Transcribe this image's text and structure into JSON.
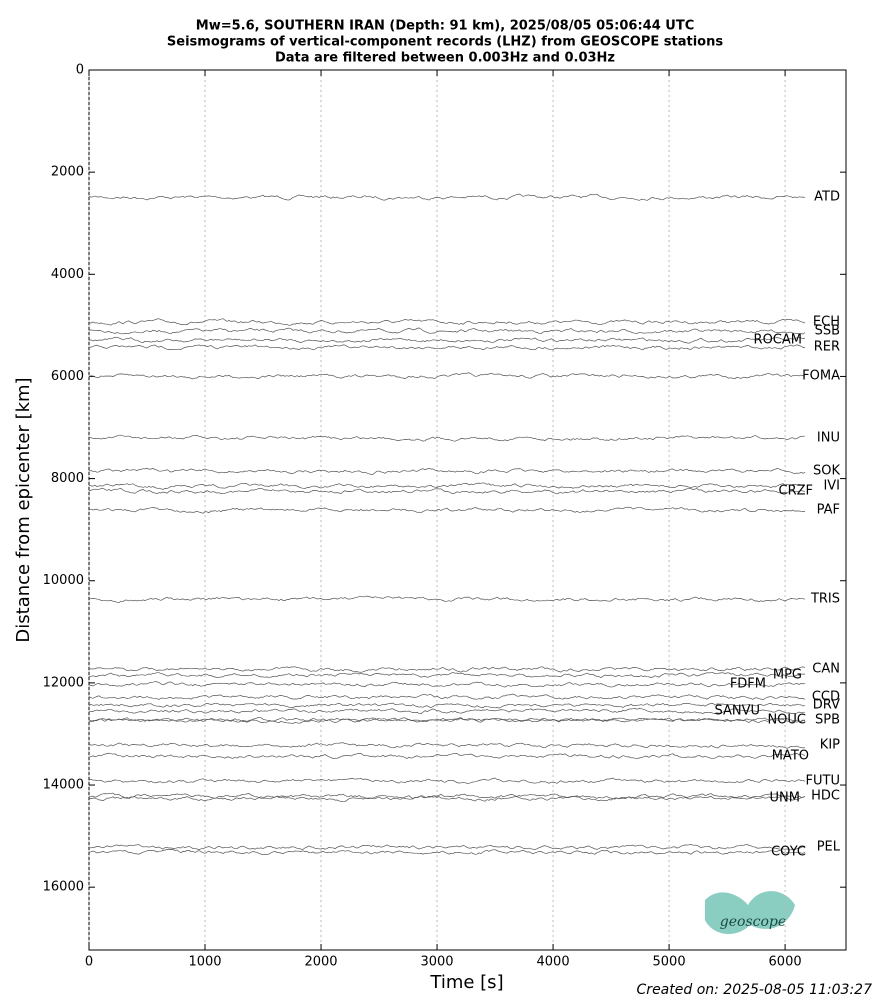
{
  "chart_data": {
    "type": "seismogram",
    "title": "Mw=5.6, SOUTHERN IRAN (Depth: 91 km), 2025/08/05 05:06:44 UTC",
    "subtitle": "Seismograms of vertical-component records (LHZ) from GEOSCOPE stations",
    "subtitle2": "Data are filtered between 0.003Hz and 0.03Hz",
    "x_label": "Time [s]",
    "y_label": "Distance from epicenter [km]",
    "footer": "Created on: 2025-08-05 11:03:27",
    "logo": "geoscope",
    "categories": [
      "ATD",
      "ECH",
      "SSB",
      "ROCAM",
      "RER",
      "FOMA",
      "INU",
      "SOK",
      "IVI",
      "CRZF",
      "PAF",
      "TRIS",
      "CAN",
      "MPG",
      "FDFM",
      "CCD",
      "DRV",
      "SANVU",
      "NOUC",
      "SPB",
      "KIP",
      "MATO",
      "FUTU",
      "HDC",
      "UNM",
      "PEL",
      "COYC"
    ],
    "values": [
      2490,
      4935,
      5112,
      5288,
      5425,
      5993,
      7207,
      7853,
      8147,
      8245,
      8617,
      10360,
      11731,
      11849,
      12025,
      12280,
      12436,
      12554,
      12730,
      12730,
      13220,
      13435,
      13925,
      14219,
      14258,
      15217,
      15315
    ],
    "color": "#555555",
    "xlim": [
      0,
      6525
    ],
    "xticks": [
      0,
      1000,
      2000,
      3000,
      4000,
      5000,
      6000
    ],
    "ylim": [
      17230,
      0
    ],
    "yticks": [
      0,
      2000,
      4000,
      6000,
      8000,
      10000,
      12000,
      14000,
      16000
    ],
    "grid": true
  }
}
